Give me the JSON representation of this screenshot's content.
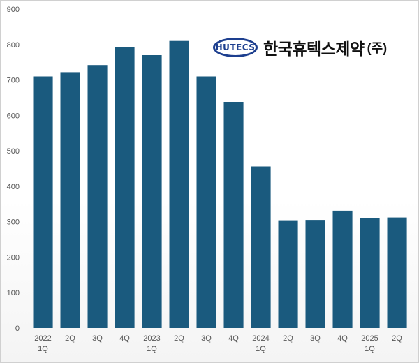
{
  "logo": {
    "emblem_text": "HUTECS",
    "company_name": "한국휴텍스제약",
    "suffix": "(주)"
  },
  "chart_data": {
    "type": "bar",
    "categories": [
      [
        "2022",
        "1Q"
      ],
      [
        "2Q"
      ],
      [
        "3Q"
      ],
      [
        "4Q"
      ],
      [
        "2023",
        "1Q"
      ],
      [
        "2Q"
      ],
      [
        "3Q"
      ],
      [
        "4Q"
      ],
      [
        "2024",
        "1Q"
      ],
      [
        "2Q"
      ],
      [
        "3Q"
      ],
      [
        "4Q"
      ],
      [
        "2025",
        "1Q"
      ],
      [
        "2Q"
      ]
    ],
    "values": [
      710,
      722,
      742,
      792,
      770,
      810,
      710,
      638,
      456,
      304,
      305,
      331,
      311,
      312
    ],
    "ylim": [
      0,
      900
    ],
    "yticks": [
      0,
      100,
      200,
      300,
      400,
      500,
      600,
      700,
      800,
      900
    ],
    "grid": false,
    "colors": {
      "bar": "#1a5a7e",
      "bar_top": "#1f6a92"
    }
  }
}
